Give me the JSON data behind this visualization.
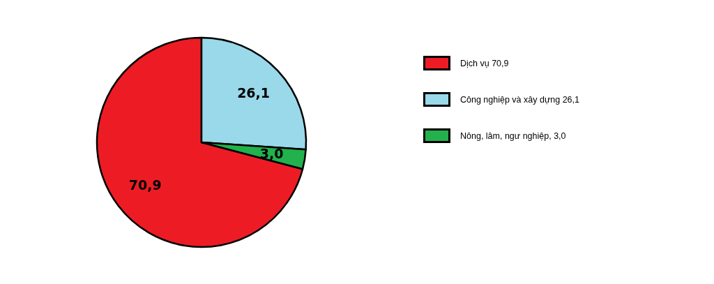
{
  "chart_data": {
    "type": "pie",
    "categories": [
      "Dịch vụ 70,9",
      "Công nghiệp và xây dựng 26,1",
      "Nông, lâm, ngư nghiệp, 3,0"
    ],
    "values": [
      70.9,
      26.1,
      3.0
    ],
    "colors": [
      "#ed1c24",
      "#99d9ea",
      "#22b14c"
    ],
    "value_labels": [
      "70,9",
      "26,1",
      "3,0"
    ],
    "legend": "right"
  }
}
